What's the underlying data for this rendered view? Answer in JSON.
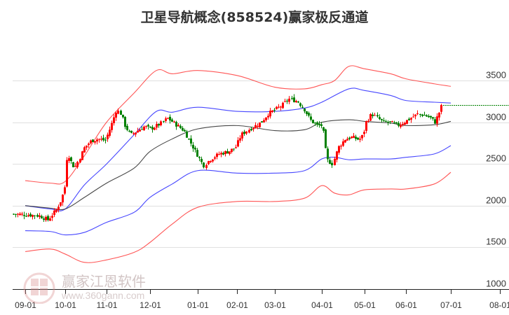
{
  "title": "卫星导航概念(858524)赢家极反通道",
  "watermark": {
    "brand": "赢家江恩软件",
    "url": "www.360gann.com",
    "logo_chars": [
      "江",
      "赢",
      "恩",
      "家"
    ]
  },
  "colors": {
    "up": "#ff0000",
    "down": "#008000",
    "outer_band": "#ff4444",
    "inner_band": "#3333ff",
    "middle": "#333333",
    "grid": "#e0e0e0",
    "last_price_line": "#008000"
  },
  "chart_data": {
    "type": "candlestick",
    "title": "卫星导航概念(858524)赢家极反通道",
    "xlabel": "",
    "ylabel": "",
    "ylim": [
      1000,
      3750
    ],
    "yticks": [
      1000,
      1500,
      2000,
      2500,
      3000,
      3500
    ],
    "xticks": [
      "09-01",
      "10-01",
      "11-01",
      "12-01",
      "01-01",
      "02-01",
      "03-01",
      "04-01",
      "05-01",
      "06-01",
      "07-01",
      "08-01"
    ],
    "grid": true,
    "last_price": 3210,
    "series": [
      {
        "name": "upper_outer",
        "color": "#ff4444",
        "points": [
          [
            "09-01",
            2300
          ],
          [
            "09-20",
            2270
          ],
          [
            "10-01",
            2290
          ],
          [
            "10-15",
            2600
          ],
          [
            "11-01",
            3000
          ],
          [
            "11-20",
            3350
          ],
          [
            "12-05",
            3620
          ],
          [
            "12-15",
            3580
          ],
          [
            "01-01",
            3620
          ],
          [
            "02-01",
            3560
          ],
          [
            "03-01",
            3420
          ],
          [
            "03-20",
            3400
          ],
          [
            "04-01",
            3450
          ],
          [
            "04-10",
            3500
          ],
          [
            "04-20",
            3670
          ],
          [
            "05-01",
            3640
          ],
          [
            "05-20",
            3580
          ],
          [
            "06-01",
            3520
          ],
          [
            "06-20",
            3460
          ],
          [
            "07-01",
            3430
          ]
        ]
      },
      {
        "name": "upper_inner",
        "color": "#3333ff",
        "points": [
          [
            "09-01",
            2000
          ],
          [
            "09-20",
            1960
          ],
          [
            "10-01",
            1960
          ],
          [
            "10-15",
            2250
          ],
          [
            "11-01",
            2500
          ],
          [
            "11-20",
            2850
          ],
          [
            "12-05",
            3130
          ],
          [
            "12-15",
            3120
          ],
          [
            "01-01",
            3180
          ],
          [
            "02-01",
            3130
          ],
          [
            "03-01",
            3130
          ],
          [
            "03-20",
            3170
          ],
          [
            "04-01",
            3240
          ],
          [
            "04-20",
            3400
          ],
          [
            "05-01",
            3380
          ],
          [
            "05-20",
            3320
          ],
          [
            "06-01",
            3260
          ],
          [
            "06-20",
            3240
          ],
          [
            "07-01",
            3230
          ]
        ]
      },
      {
        "name": "middle",
        "color": "#333333",
        "points": [
          [
            "09-01",
            2000
          ],
          [
            "09-20",
            1970
          ],
          [
            "10-01",
            1960
          ],
          [
            "10-15",
            2100
          ],
          [
            "11-01",
            2270
          ],
          [
            "11-20",
            2450
          ],
          [
            "12-01",
            2650
          ],
          [
            "12-15",
            2800
          ],
          [
            "01-01",
            2920
          ],
          [
            "02-01",
            2960
          ],
          [
            "03-01",
            2900
          ],
          [
            "03-20",
            2910
          ],
          [
            "04-01",
            3000
          ],
          [
            "04-20",
            3030
          ],
          [
            "05-01",
            3010
          ],
          [
            "05-20",
            2990
          ],
          [
            "06-01",
            2960
          ],
          [
            "06-20",
            2970
          ],
          [
            "07-01",
            3010
          ]
        ]
      },
      {
        "name": "lower_inner",
        "color": "#3333ff",
        "points": [
          [
            "09-01",
            1700
          ],
          [
            "09-20",
            1690
          ],
          [
            "10-01",
            1650
          ],
          [
            "10-15",
            1680
          ],
          [
            "11-01",
            1800
          ],
          [
            "11-20",
            1920
          ],
          [
            "12-01",
            2100
          ],
          [
            "12-15",
            2260
          ],
          [
            "01-01",
            2420
          ],
          [
            "02-01",
            2390
          ],
          [
            "03-01",
            2390
          ],
          [
            "03-20",
            2420
          ],
          [
            "04-01",
            2560
          ],
          [
            "04-10",
            2580
          ],
          [
            "04-20",
            2550
          ],
          [
            "05-01",
            2560
          ],
          [
            "05-20",
            2560
          ],
          [
            "06-01",
            2580
          ],
          [
            "06-20",
            2620
          ],
          [
            "07-01",
            2720
          ]
        ]
      },
      {
        "name": "lower_outer",
        "color": "#ff4444",
        "points": [
          [
            "09-01",
            1450
          ],
          [
            "09-20",
            1480
          ],
          [
            "10-01",
            1420
          ],
          [
            "10-15",
            1320
          ],
          [
            "11-01",
            1350
          ],
          [
            "11-20",
            1440
          ],
          [
            "12-01",
            1560
          ],
          [
            "12-15",
            1780
          ],
          [
            "01-01",
            1980
          ],
          [
            "02-01",
            2050
          ],
          [
            "03-01",
            2050
          ],
          [
            "03-20",
            2090
          ],
          [
            "04-01",
            2240
          ],
          [
            "04-10",
            2150
          ],
          [
            "04-20",
            2130
          ],
          [
            "05-01",
            2190
          ],
          [
            "05-20",
            2200
          ],
          [
            "06-01",
            2200
          ],
          [
            "06-20",
            2260
          ],
          [
            "07-01",
            2400
          ]
        ]
      }
    ],
    "candles_summary": "Daily OHLC candlesticks; red=up, green=down. Price ~1900 in Sept, breakout early Oct to ~2800, peak ~3150 mid-Nov, consolidation ~2900-3050 Dec, dip to ~2450 late Jan, rally to ~3300 early Mar, drop to ~2950 late Mar, gap down to ~2450 early Apr, recovery to ~3100 May, range 2950-3150 May-Jun, last close ~3210."
  }
}
